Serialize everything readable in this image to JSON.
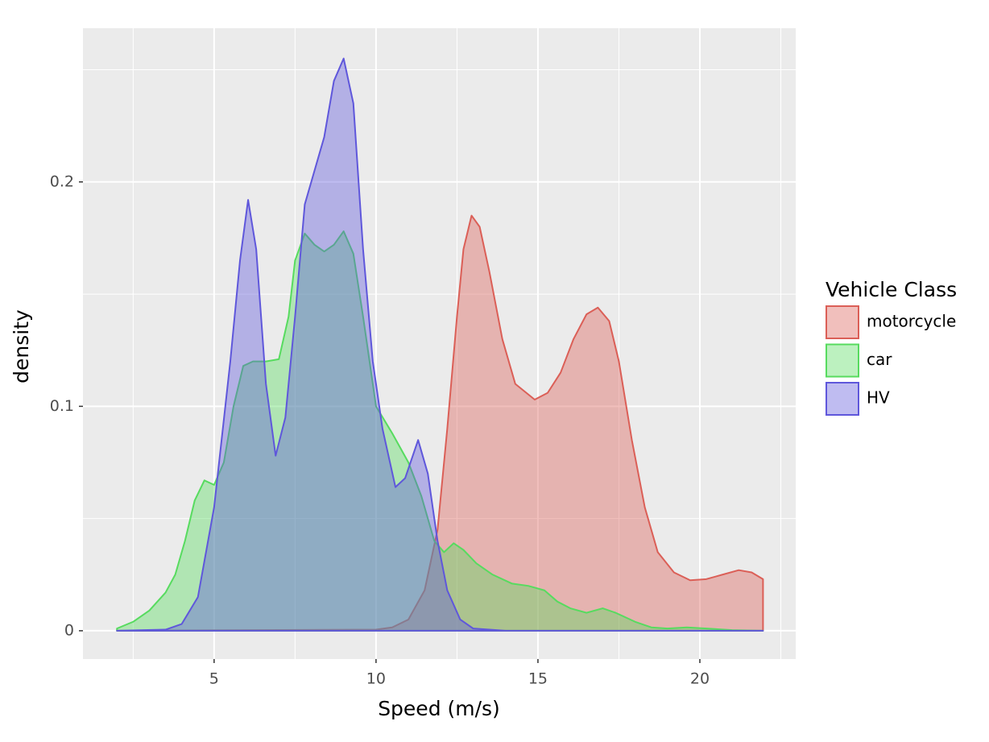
{
  "chart_data": {
    "type": "area",
    "x_label": "Speed (m/s)",
    "y_label": "density",
    "legend_title": "Vehicle Class",
    "legend": "right",
    "xlim": [
      0.95,
      22.96
    ],
    "ylim": [
      -0.0126,
      0.2685
    ],
    "xticks": [
      5,
      10,
      15,
      20
    ],
    "yticks": [
      0,
      0.1,
      0.2
    ],
    "x_minor_grid": [
      2.5,
      7.5,
      12.5,
      17.5,
      22.5
    ],
    "y_minor_grid": [
      0.05,
      0.15,
      0.25
    ],
    "grid": true,
    "fill_opacity": 0.4,
    "series": [
      {
        "name": "motorcycle",
        "color": "#db5f57",
        "x": [
          2,
          10,
          10.5,
          11.0,
          11.5,
          11.9,
          12.2,
          12.5,
          12.7,
          12.95,
          13.2,
          13.5,
          13.9,
          14.3,
          14.9,
          15.3,
          15.7,
          16.1,
          16.5,
          16.85,
          17.2,
          17.5,
          17.9,
          18.3,
          18.7,
          19.2,
          19.7,
          20.2,
          20.7,
          21.2,
          21.6,
          21.95
        ],
        "values": [
          0,
          0.0005,
          0.0015,
          0.005,
          0.018,
          0.045,
          0.09,
          0.14,
          0.17,
          0.185,
          0.18,
          0.16,
          0.13,
          0.11,
          0.103,
          0.106,
          0.115,
          0.13,
          0.141,
          0.144,
          0.138,
          0.12,
          0.085,
          0.055,
          0.035,
          0.026,
          0.0225,
          0.023,
          0.025,
          0.027,
          0.026,
          0.023
        ]
      },
      {
        "name": "car",
        "color": "#57db5f",
        "x": [
          2.0,
          2.5,
          3.0,
          3.5,
          3.8,
          4.1,
          4.4,
          4.7,
          5.0,
          5.3,
          5.6,
          5.9,
          6.2,
          6.6,
          7.0,
          7.3,
          7.5,
          7.8,
          8.1,
          8.4,
          8.7,
          9.0,
          9.3,
          9.6,
          10.0,
          10.5,
          11.0,
          11.4,
          11.8,
          12.1,
          12.4,
          12.7,
          13.1,
          13.6,
          14.2,
          14.7,
          15.2,
          15.6,
          16.0,
          16.5,
          17.0,
          17.4,
          18.0,
          18.5,
          19.0,
          19.6,
          20.2,
          21,
          21.95
        ],
        "values": [
          0.001,
          0.004,
          0.009,
          0.017,
          0.025,
          0.04,
          0.058,
          0.067,
          0.065,
          0.075,
          0.1,
          0.118,
          0.12,
          0.12,
          0.121,
          0.14,
          0.165,
          0.177,
          0.172,
          0.169,
          0.172,
          0.178,
          0.168,
          0.14,
          0.1,
          0.088,
          0.075,
          0.06,
          0.04,
          0.035,
          0.039,
          0.036,
          0.03,
          0.025,
          0.021,
          0.02,
          0.018,
          0.013,
          0.01,
          0.008,
          0.01,
          0.008,
          0.004,
          0.0015,
          0.001,
          0.0015,
          0.001,
          0.0003,
          0
        ]
      },
      {
        "name": "HV",
        "color": "#5f57db",
        "x": [
          2,
          3.5,
          4.0,
          4.5,
          5.0,
          5.5,
          5.8,
          6.05,
          6.3,
          6.6,
          6.9,
          7.2,
          7.5,
          7.8,
          8.1,
          8.4,
          8.7,
          9.0,
          9.3,
          9.6,
          9.9,
          10.2,
          10.6,
          10.9,
          11.3,
          11.6,
          11.9,
          12.2,
          12.6,
          13.0,
          14,
          21.95
        ],
        "values": [
          0,
          0.0005,
          0.003,
          0.015,
          0.055,
          0.12,
          0.165,
          0.192,
          0.17,
          0.11,
          0.078,
          0.095,
          0.14,
          0.19,
          0.205,
          0.22,
          0.245,
          0.255,
          0.235,
          0.17,
          0.12,
          0.09,
          0.064,
          0.068,
          0.085,
          0.07,
          0.04,
          0.018,
          0.005,
          0.001,
          0,
          0
        ]
      }
    ]
  }
}
